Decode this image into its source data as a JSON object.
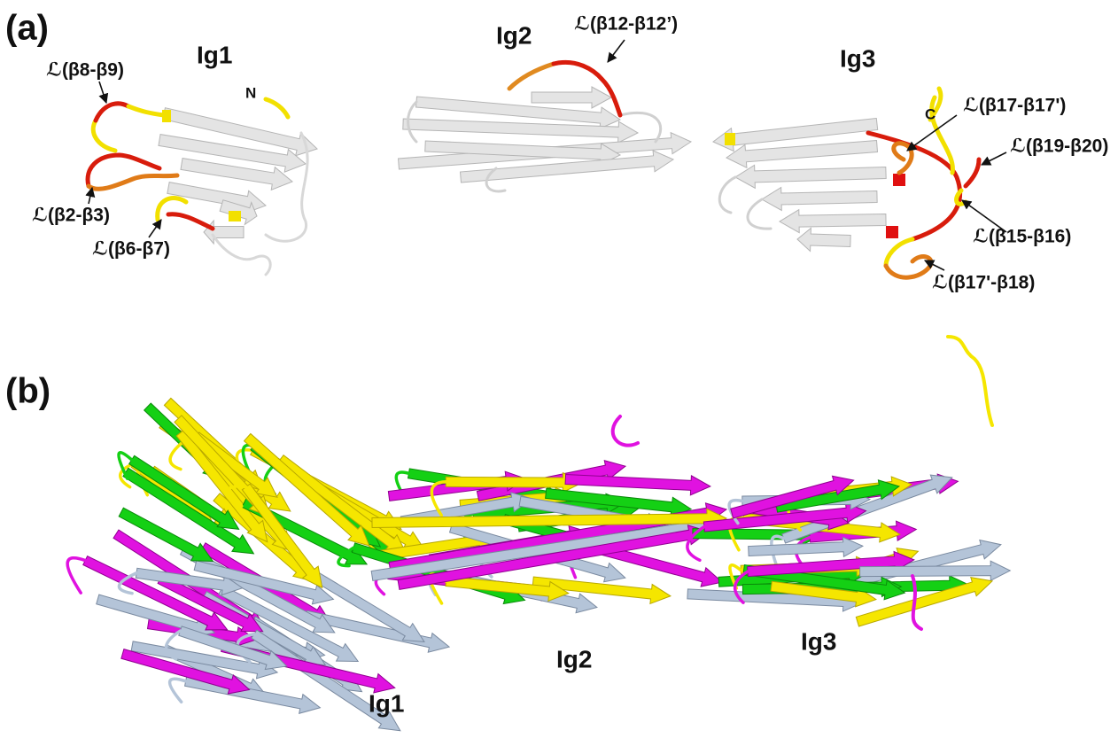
{
  "panel_a": {
    "label": "(a)",
    "domains": [
      "Ig1",
      "Ig2",
      "Ig3"
    ],
    "termini": [
      "N",
      "C"
    ],
    "loops": [
      "ℒ(β8-β9)",
      "ℒ(β2-β3)",
      "ℒ(β6-β7)",
      "ℒ(β12-β12’)",
      "ℒ(β17-β17')",
      "ℒ(β19-β20)",
      "ℒ(β15-β16)",
      "ℒ(β17'-β18)"
    ]
  },
  "panel_b": {
    "label": "(b)",
    "domains": [
      "Ig1",
      "Ig2",
      "Ig3"
    ]
  }
}
